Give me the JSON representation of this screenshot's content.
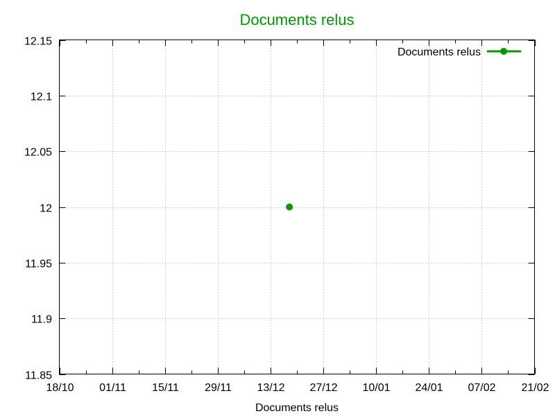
{
  "chart_data": {
    "type": "line",
    "title": "Documents relus",
    "xlabel": "Documents relus",
    "ylabel": "",
    "x_axis_kind": "date",
    "x_range": [
      "2015-10-18",
      "2016-02-21"
    ],
    "x_ticks": [
      "18/10",
      "01/11",
      "15/11",
      "29/11",
      "13/12",
      "27/12",
      "10/01",
      "24/01",
      "07/02",
      "21/02"
    ],
    "ylim": [
      11.85,
      12.15
    ],
    "y_ticks": [
      "11.85",
      "11.9",
      "11.95",
      "12",
      "12.05",
      "12.1",
      "12.15"
    ],
    "grid": true,
    "legend_position": "top-right",
    "series": [
      {
        "name": "Documents relus",
        "color": "#009900",
        "marker": "circle",
        "points": [
          {
            "x": "2015-12-18",
            "y": 12
          }
        ]
      }
    ]
  },
  "colors": {
    "title": "#009900",
    "series": "#009900",
    "grid": "#999999",
    "axis": "#000000"
  }
}
